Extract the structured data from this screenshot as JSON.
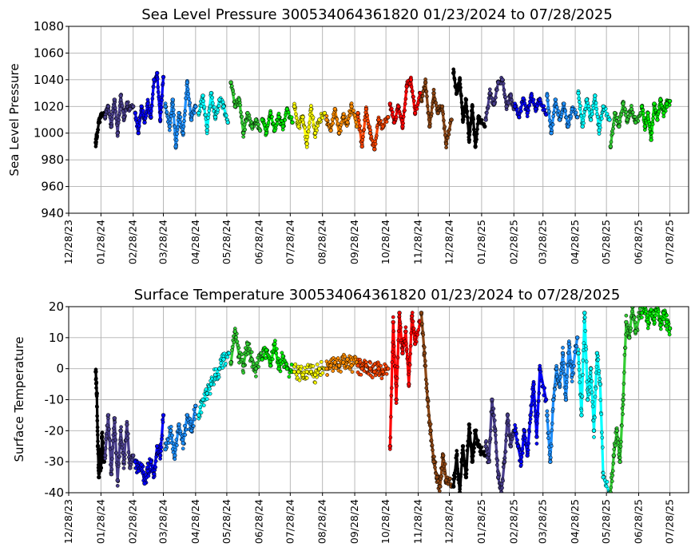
{
  "chart_data": [
    {
      "type": "scatter",
      "title": "Sea Level Pressure 300534064361820  01/23/2024 to 07/28/2025",
      "ylabel": "Sea Level Pressure",
      "xlabel": "",
      "x_range": [
        "12/28/23",
        "08/15/25"
      ],
      "ylim": [
        940,
        1080
      ],
      "y_ticks": [
        940,
        960,
        980,
        1000,
        1020,
        1040,
        1060,
        1080
      ],
      "x_tick_labels": [
        "12/28/23",
        "01/28/24",
        "02/28/24",
        "03/28/24",
        "04/28/24",
        "05/28/24",
        "06/28/24",
        "07/28/24",
        "08/28/24",
        "09/28/24",
        "10/28/24",
        "11/28/24",
        "12/28/24",
        "01/28/25",
        "02/28/25",
        "03/28/25",
        "04/28/25",
        "05/28/25",
        "06/28/25",
        "07/28/25"
      ],
      "grid": true,
      "monthly_colors": [
        "#000000",
        "#483D8B",
        "#0000FF",
        "#1E90FF",
        "#00FFFF",
        "#32CD32",
        "#00EE00",
        "#FFFF00",
        "#FF8C00",
        "#FF4500",
        "#FF0000",
        "#8B4513",
        "#000000",
        "#483D8B",
        "#0000FF",
        "#1E90FF",
        "#00FFFF",
        "#32CD32",
        "#00EE00"
      ],
      "series": [
        {
          "color": "#000000",
          "x": [
            "01/23/24",
            "01/24/24",
            "01/26/24",
            "01/28/24",
            "01/31/24"
          ],
          "y": [
            993,
            998,
            1008,
            1013,
            1015
          ]
        },
        {
          "color": "#483D8B",
          "x": [
            "02/01/24",
            "02/04/24",
            "02/07/24",
            "02/10/24",
            "02/13/24",
            "02/16/24",
            "02/19/24",
            "02/22/24",
            "02/25/24",
            "02/28/24"
          ],
          "y": [
            1012,
            1020,
            1005,
            1025,
            1000,
            1028,
            1012,
            1022,
            1018,
            1020
          ]
        },
        {
          "color": "#0000FF",
          "x": [
            "03/01/24",
            "03/04/24",
            "03/07/24",
            "03/10/24",
            "03/13/24",
            "03/16/24",
            "03/19/24",
            "03/22/24",
            "03/25/24",
            "03/28/24"
          ],
          "y": [
            1015,
            1000,
            1020,
            1008,
            1022,
            1012,
            1040,
            1045,
            1010,
            1042
          ]
        },
        {
          "color": "#1E90FF",
          "x": [
            "03/30/24",
            "04/03/24",
            "04/06/24",
            "04/09/24",
            "04/12/24",
            "04/16/24",
            "04/20/24",
            "04/24/24",
            "04/28/24"
          ],
          "y": [
            1020,
            1005,
            1025,
            990,
            1015,
            1000,
            1038,
            1010,
            1020
          ]
        },
        {
          "color": "#00FFFF",
          "x": [
            "05/01/24",
            "05/05/24",
            "05/09/24",
            "05/13/24",
            "05/17/24",
            "05/21/24",
            "05/25/24",
            "05/29/24"
          ],
          "y": [
            1015,
            1028,
            1002,
            1030,
            1012,
            1025,
            1020,
            1008
          ]
        },
        {
          "color": "#32CD32",
          "x": [
            "06/01/24",
            "06/05/24",
            "06/09/24",
            "06/13/24",
            "06/17/24",
            "06/21/24",
            "06/25/24",
            "06/29/24"
          ],
          "y": [
            1038,
            1020,
            1025,
            1000,
            1015,
            1005,
            1010,
            1002
          ]
        },
        {
          "color": "#00EE00",
          "x": [
            "07/01/24",
            "07/05/24",
            "07/09/24",
            "07/13/24",
            "07/17/24",
            "07/21/24",
            "07/25/24",
            "07/30/24"
          ],
          "y": [
            1010,
            1000,
            1015,
            1002,
            1012,
            1005,
            1018,
            1008
          ]
        },
        {
          "color": "#FFFF00",
          "x": [
            "08/01/24",
            "08/05/24",
            "08/09/24",
            "08/13/24",
            "08/17/24",
            "08/21/24",
            "08/25/24",
            "08/30/24"
          ],
          "y": [
            1020,
            1005,
            1012,
            992,
            1018,
            1000,
            1010,
            1015
          ]
        },
        {
          "color": "#FF8C00",
          "x": [
            "09/01/24",
            "09/05/24",
            "09/09/24",
            "09/13/24",
            "09/17/24",
            "09/21/24",
            "09/25/24",
            "09/30/24"
          ],
          "y": [
            1010,
            1002,
            1018,
            1000,
            1012,
            1008,
            1020,
            1005
          ]
        },
        {
          "color": "#FF4500",
          "x": [
            "10/01/24",
            "10/05/24",
            "10/09/24",
            "10/13/24",
            "10/17/24",
            "10/21/24",
            "10/25/24",
            "10/30/24"
          ],
          "y": [
            1015,
            990,
            1018,
            1000,
            988,
            1010,
            1005,
            1012
          ]
        },
        {
          "color": "#FF0000",
          "x": [
            "11/01/24",
            "11/05/24",
            "11/09/24",
            "11/13/24",
            "11/17/24",
            "11/21/24",
            "11/25/24",
            "11/30/24"
          ],
          "y": [
            1022,
            1008,
            1020,
            1005,
            1035,
            1040,
            1015,
            1030
          ]
        },
        {
          "color": "#8B4513",
          "x": [
            "12/01/24",
            "12/05/24",
            "12/09/24",
            "12/13/24",
            "12/17/24",
            "12/21/24",
            "12/25/24",
            "12/30/24"
          ],
          "y": [
            1025,
            1038,
            1005,
            1030,
            1015,
            1020,
            992,
            1010
          ]
        },
        {
          "color": "#000000",
          "x": [
            "01/01/25",
            "01/04/25",
            "01/07/25",
            "01/10/25",
            "01/13/25",
            "01/16/25",
            "01/19/25",
            "01/22/25",
            "01/25/25",
            "01/31/25"
          ],
          "y": [
            1045,
            1030,
            1040,
            1010,
            1025,
            995,
            1020,
            990,
            1012,
            1005
          ]
        },
        {
          "color": "#483D8B",
          "x": [
            "02/01/25",
            "02/05/25",
            "02/09/25",
            "02/13/25",
            "02/17/25",
            "02/21/25",
            "02/25/25",
            "02/28/25"
          ],
          "y": [
            1010,
            1030,
            1022,
            1038,
            1040,
            1020,
            1028,
            1018
          ]
        },
        {
          "color": "#0000FF",
          "x": [
            "03/01/25",
            "03/05/25",
            "03/09/25",
            "03/13/25",
            "03/17/25",
            "03/21/25",
            "03/25/25",
            "03/31/25"
          ],
          "y": [
            1020,
            1012,
            1026,
            1015,
            1028,
            1018,
            1025,
            1014
          ]
        },
        {
          "color": "#1E90FF",
          "x": [
            "04/01/25",
            "04/05/25",
            "04/09/25",
            "04/13/25",
            "04/17/25",
            "04/21/25",
            "04/25/25",
            "04/30/25"
          ],
          "y": [
            1028,
            1000,
            1025,
            1010,
            1022,
            1005,
            1018,
            1012
          ]
        },
        {
          "color": "#00FFFF",
          "x": [
            "05/01/25",
            "05/05/25",
            "05/09/25",
            "05/13/25",
            "05/17/25",
            "05/21/25",
            "05/25/25",
            "05/31/25"
          ],
          "y": [
            1030,
            1005,
            1025,
            1010,
            1028,
            1002,
            1020,
            1010
          ]
        },
        {
          "color": "#32CD32",
          "x": [
            "06/01/25",
            "06/05/25",
            "06/09/25",
            "06/13/25",
            "06/17/25",
            "06/21/25",
            "06/25/25",
            "06/30/25"
          ],
          "y": [
            990,
            1015,
            1005,
            1022,
            1010,
            1018,
            1008,
            1015
          ]
        },
        {
          "color": "#00EE00",
          "x": [
            "07/01/25",
            "07/04/25",
            "07/07/25",
            "07/10/25",
            "07/13/25",
            "07/16/25",
            "07/19/25",
            "07/22/25",
            "07/25/25",
            "07/28/25"
          ],
          "y": [
            1020,
            1005,
            1015,
            995,
            1022,
            1010,
            1025,
            1015,
            1022,
            1024
          ]
        }
      ]
    },
    {
      "type": "scatter",
      "title": "Surface Temperature 300534064361820  01/23/2024 to 07/28/2025",
      "ylabel": "Surface Temperature",
      "xlabel": "",
      "x_range": [
        "12/28/23",
        "08/15/25"
      ],
      "ylim": [
        -40,
        20
      ],
      "y_ticks": [
        -40,
        -30,
        -20,
        -10,
        0,
        10,
        20
      ],
      "x_tick_labels": [
        "12/28/23",
        "01/28/24",
        "02/28/24",
        "03/28/24",
        "04/28/24",
        "05/28/24",
        "06/28/24",
        "07/28/24",
        "08/28/24",
        "09/28/24",
        "10/28/24",
        "11/28/24",
        "12/28/24",
        "01/28/25",
        "02/28/25",
        "03/28/25",
        "04/28/25",
        "05/28/25",
        "06/28/25",
        "07/28/25"
      ],
      "grid": true,
      "series": [
        {
          "color": "#000000",
          "x": [
            "01/23/24",
            "01/24/24",
            "01/25/24",
            "01/26/24",
            "01/27/24",
            "01/28/24",
            "01/29/24",
            "01/31/24"
          ],
          "y": [
            -1,
            -8,
            -25,
            -35,
            -28,
            -32,
            -22,
            -30
          ]
        },
        {
          "color": "#483D8B",
          "x": [
            "02/01/24",
            "02/04/24",
            "02/07/24",
            "02/10/24",
            "02/13/24",
            "02/16/24",
            "02/19/24",
            "02/22/24",
            "02/25/24",
            "02/28/24"
          ],
          "y": [
            -28,
            -15,
            -34,
            -16,
            -36,
            -20,
            -30,
            -18,
            -32,
            -28
          ]
        },
        {
          "color": "#0000FF",
          "x": [
            "03/01/24",
            "03/04/24",
            "03/07/24",
            "03/10/24",
            "03/13/24",
            "03/16/24",
            "03/19/24",
            "03/22/24",
            "03/25/24",
            "03/28/24"
          ],
          "y": [
            -30,
            -33,
            -31,
            -37,
            -33,
            -30,
            -34,
            -25,
            -28,
            -15
          ]
        },
        {
          "color": "#1E90FF",
          "x": [
            "03/30/24",
            "04/04/24",
            "04/08/24",
            "04/12/24",
            "04/16/24",
            "04/20/24",
            "04/24/24",
            "04/28/24"
          ],
          "y": [
            -26,
            -20,
            -28,
            -18,
            -24,
            -15,
            -20,
            -12
          ]
        },
        {
          "color": "#00FFFF",
          "x": [
            "05/01/24",
            "05/05/24",
            "05/09/24",
            "05/13/24",
            "05/17/24",
            "05/21/24",
            "05/25/24",
            "05/30/24"
          ],
          "y": [
            -15,
            -10,
            -8,
            -5,
            -2,
            0,
            3,
            5
          ]
        },
        {
          "color": "#32CD32",
          "x": [
            "06/01/24",
            "06/05/24",
            "06/09/24",
            "06/13/24",
            "06/17/24",
            "06/21/24",
            "06/25/24",
            "06/30/24"
          ],
          "y": [
            2,
            12,
            4,
            1,
            8,
            3,
            0,
            5
          ]
        },
        {
          "color": "#00EE00",
          "x": [
            "07/01/24",
            "07/05/24",
            "07/09/24",
            "07/13/24",
            "07/17/24",
            "07/21/24",
            "07/25/24",
            "07/30/24"
          ],
          "y": [
            3,
            6,
            1,
            8,
            0,
            4,
            0,
            -1
          ]
        },
        {
          "color": "#FFFF00",
          "x": [
            "08/01/24",
            "08/05/24",
            "08/09/24",
            "08/13/24",
            "08/17/24",
            "08/21/24",
            "08/25/24",
            "08/30/24"
          ],
          "y": [
            -1,
            -1,
            -2,
            -1,
            -1,
            -2,
            0,
            0
          ]
        },
        {
          "color": "#FF8C00",
          "x": [
            "09/01/24",
            "09/05/24",
            "09/09/24",
            "09/13/24",
            "09/17/24",
            "09/21/24",
            "09/25/24",
            "09/30/24"
          ],
          "y": [
            0,
            1,
            2,
            1,
            2,
            3,
            1,
            2
          ]
        },
        {
          "color": "#FF4500",
          "x": [
            "10/01/24",
            "10/05/24",
            "10/09/24",
            "10/13/24",
            "10/17/24",
            "10/21/24",
            "10/25/24",
            "10/30/24"
          ],
          "y": [
            1,
            0,
            1,
            0,
            -1,
            0,
            -1,
            0
          ]
        },
        {
          "color": "#FF0000",
          "x": [
            "11/01/24",
            "11/04/24",
            "11/07/24",
            "11/10/24",
            "11/13/24",
            "11/16/24",
            "11/19/24",
            "11/22/24",
            "11/25/24",
            "11/30/24"
          ],
          "y": [
            -25,
            15,
            -10,
            18,
            5,
            12,
            -5,
            17,
            8,
            15
          ]
        },
        {
          "color": "#8B4513",
          "x": [
            "12/01/24",
            "12/04/24",
            "12/07/24",
            "12/10/24",
            "12/13/24",
            "12/16/24",
            "12/19/24",
            "12/22/24",
            "12/25/24",
            "12/30/24"
          ],
          "y": [
            18,
            5,
            -10,
            -20,
            -30,
            -35,
            -38,
            -28,
            -36,
            -38
          ]
        },
        {
          "color": "#000000",
          "x": [
            "01/01/25",
            "01/04/25",
            "01/07/25",
            "01/10/25",
            "01/13/25",
            "01/16/25",
            "01/19/25",
            "01/22/25",
            "01/25/25",
            "01/31/25"
          ],
          "y": [
            -38,
            -28,
            -40,
            -25,
            -35,
            -18,
            -30,
            -20,
            -25,
            -28
          ]
        },
        {
          "color": "#483D8B",
          "x": [
            "02/01/25",
            "02/04/25",
            "02/07/25",
            "02/10/25",
            "02/13/25",
            "02/16/25",
            "02/19/25",
            "02/22/25",
            "02/25/25",
            "02/28/25"
          ],
          "y": [
            -25,
            -30,
            -10,
            -20,
            -35,
            -40,
            -30,
            -15,
            -25,
            -20
          ]
        },
        {
          "color": "#0000FF",
          "x": [
            "03/01/25",
            "03/04/25",
            "03/07/25",
            "03/10/25",
            "03/13/25",
            "03/16/25",
            "03/19/25",
            "03/22/25",
            "03/25/25",
            "03/31/25"
          ],
          "y": [
            -20,
            -25,
            -30,
            -20,
            -28,
            -15,
            -5,
            -22,
            0,
            -10
          ]
        },
        {
          "color": "#1E90FF",
          "x": [
            "04/01/25",
            "04/04/25",
            "04/07/25",
            "04/10/25",
            "04/13/25",
            "04/16/25",
            "04/19/25",
            "04/22/25",
            "04/25/25",
            "04/30/25"
          ],
          "y": [
            -15,
            -30,
            -10,
            0,
            -5,
            5,
            -10,
            8,
            -2,
            10
          ]
        },
        {
          "color": "#00FFFF",
          "x": [
            "05/01/25",
            "05/04/25",
            "05/07/25",
            "05/10/25",
            "05/13/25",
            "05/16/25",
            "05/19/25",
            "05/22/25",
            "05/25/25",
            "05/31/25"
          ],
          "y": [
            5,
            -15,
            18,
            -10,
            0,
            -20,
            5,
            -5,
            -35,
            -40
          ]
        },
        {
          "color": "#32CD32",
          "x": [
            "06/01/25",
            "06/04/25",
            "06/07/25",
            "06/10/25",
            "06/13/25",
            "06/16/25",
            "06/19/25",
            "06/22/25",
            "06/25/25",
            "06/30/25"
          ],
          "y": [
            -40,
            -28,
            -20,
            -30,
            -10,
            15,
            10,
            20,
            12,
            18
          ]
        },
        {
          "color": "#00EE00",
          "x": [
            "07/01/25",
            "07/04/25",
            "07/07/25",
            "07/10/25",
            "07/13/25",
            "07/16/25",
            "07/19/25",
            "07/22/25",
            "07/25/25",
            "07/28/25"
          ],
          "y": [
            18,
            20,
            15,
            19,
            16,
            20,
            14,
            18,
            15,
            13
          ]
        }
      ]
    }
  ]
}
